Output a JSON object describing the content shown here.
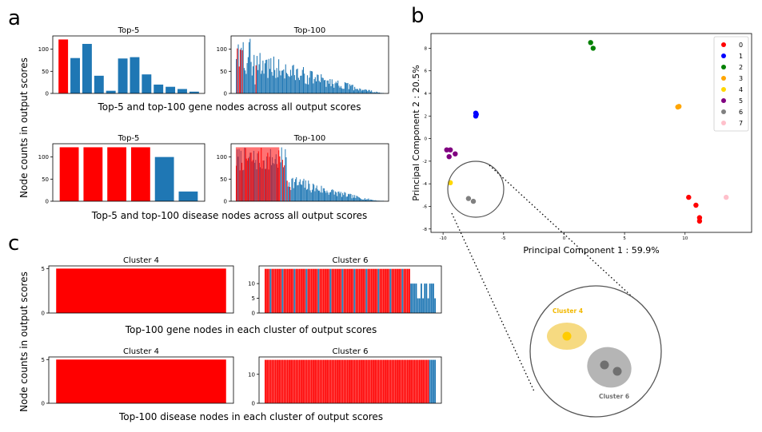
{
  "panel_labels": {
    "a": "a",
    "b": "b",
    "c": "c"
  },
  "captions": {
    "a_gene": "Top-5 and top-100 gene nodes across all output scores",
    "a_disease": "Top-5 and top-100 disease nodes  across all output scores",
    "c_gene": "Top-100 gene nodes in each cluster of output scores",
    "c_disease": "Top-100 disease nodes in each cluster of output scores"
  },
  "ylabels": {
    "a": "Node counts in output scores",
    "c": "Node counts in output scores"
  },
  "colors": {
    "red": "#ff0000",
    "blue": "#1f77b4"
  },
  "chart_data": [
    {
      "id": "a-gene-top5",
      "type": "bar",
      "title": "Top-5",
      "ylim": [
        0,
        130
      ],
      "yticks": [
        0,
        50,
        100
      ],
      "values": [
        122,
        80,
        112,
        40,
        6,
        79,
        82,
        43,
        20,
        15,
        10,
        4
      ],
      "highlight": [
        0
      ]
    },
    {
      "id": "a-gene-top100",
      "type": "bar",
      "title": "Top-100",
      "ylim": [
        0,
        130
      ],
      "yticks": [
        0,
        50,
        100
      ],
      "generator": {
        "n": 150,
        "seed": 3,
        "red_idx": [
          1,
          3,
          4,
          6,
          20
        ],
        "profile": "gene"
      }
    },
    {
      "id": "a-disease-top5",
      "type": "bar",
      "title": "Top-5",
      "ylim": [
        0,
        130
      ],
      "yticks": [
        0,
        50,
        100
      ],
      "values": [
        122,
        122,
        122,
        122,
        100,
        22
      ],
      "highlight": [
        0,
        1,
        2,
        3
      ]
    },
    {
      "id": "a-disease-top100",
      "type": "bar",
      "title": "Top-100",
      "ylim": [
        0,
        130
      ],
      "yticks": [
        0,
        50,
        100
      ],
      "generator": {
        "n": 160,
        "seed": 7,
        "red_idx": [
          0,
          4,
          6,
          10,
          11,
          13,
          16,
          18,
          24,
          27,
          29,
          32,
          34,
          36,
          44,
          46,
          47,
          50,
          52,
          55,
          58
        ],
        "profile": "disease"
      }
    },
    {
      "id": "c-gene-cluster4",
      "type": "bar",
      "title": "Cluster 4",
      "ylim": [
        0,
        5.3
      ],
      "yticks": [
        0,
        5
      ],
      "values": [
        5
      ],
      "highlight": [
        0
      ]
    },
    {
      "id": "c-gene-cluster6",
      "type": "bar",
      "title": "Cluster 6",
      "ylim": [
        0,
        16
      ],
      "yticks": [
        0,
        5,
        10
      ],
      "generator": {
        "n": 100,
        "seed": 11,
        "red_idx": [],
        "profile": "cluster_gene"
      }
    },
    {
      "id": "c-disease-cluster4",
      "type": "bar",
      "title": "Cluster 4",
      "ylim": [
        0,
        5.3
      ],
      "yticks": [
        0,
        5
      ],
      "values": [
        5
      ],
      "highlight": [
        0
      ]
    },
    {
      "id": "c-disease-cluster6",
      "type": "bar",
      "title": "Cluster 6",
      "ylim": [
        0,
        16
      ],
      "yticks": [
        0,
        10
      ],
      "generator": {
        "n": 100,
        "seed": 13,
        "red_idx": [],
        "profile": "cluster_disease"
      }
    },
    {
      "id": "b-pca",
      "type": "scatter",
      "xlabel": "Principal Component 1 : 59.9%",
      "ylabel": "Principal Component 2 : 20.5%",
      "xlim": [
        -11,
        15.5
      ],
      "ylim": [
        -8.3,
        9.3
      ],
      "xticks": [
        -10,
        -5,
        0,
        5,
        10
      ],
      "yticks": [
        -8,
        -6,
        -4,
        -2,
        0,
        2,
        4,
        6,
        8
      ],
      "series": [
        {
          "name": "0",
          "color": "#ff0000",
          "points": [
            [
              10.3,
              -5.2
            ],
            [
              10.9,
              -5.9
            ],
            [
              11.2,
              -7.0
            ],
            [
              11.2,
              -7.3
            ]
          ]
        },
        {
          "name": "1",
          "color": "#0000ff",
          "points": [
            [
              -7.3,
              2.0
            ],
            [
              -7.3,
              2.25
            ],
            [
              -7.25,
              2.15
            ]
          ]
        },
        {
          "name": "2",
          "color": "#008000",
          "points": [
            [
              2.2,
              8.5
            ],
            [
              2.4,
              8.0
            ]
          ]
        },
        {
          "name": "3",
          "color": "#ffa500",
          "points": [
            [
              9.4,
              2.8
            ],
            [
              9.5,
              2.85
            ]
          ]
        },
        {
          "name": "4",
          "color": "#ffd700",
          "points": [
            [
              -9.4,
              -3.9
            ]
          ]
        },
        {
          "name": "5",
          "color": "#800080",
          "points": [
            [
              -9.7,
              -1.0
            ],
            [
              -9.4,
              -1.0
            ],
            [
              -9.5,
              -1.6
            ],
            [
              -9.0,
              -1.35
            ]
          ]
        },
        {
          "name": "6",
          "color": "#808080",
          "points": [
            [
              -7.9,
              -5.3
            ],
            [
              -7.5,
              -5.55
            ]
          ]
        },
        {
          "name": "7",
          "color": "#ffc0cb",
          "points": [
            [
              13.4,
              -5.2
            ]
          ]
        }
      ]
    }
  ],
  "zoom": {
    "cluster4_label": "Cluster 4",
    "cluster6_label": "Cluster 6"
  }
}
